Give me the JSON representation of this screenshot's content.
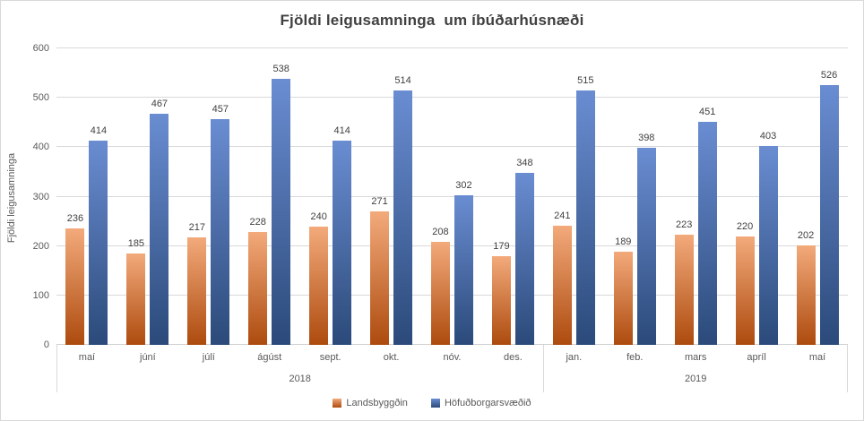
{
  "chart_data": {
    "type": "bar",
    "title": "Fjöldi leigusamninga  um íbúðarhúsnæði",
    "ylabel": "Fjöldi leigusamninga",
    "xlabel": "",
    "ylim": [
      0,
      600
    ],
    "ytick_interval": 100,
    "grid": true,
    "legend_position": "bottom",
    "background": "#ffffff",
    "gridline_color": "#d9d9d9",
    "text_color": "#595959",
    "title_color": "#404040",
    "categories": [
      "maí",
      "júní",
      "júlí",
      "ágúst",
      "sept.",
      "okt.",
      "nóv.",
      "des.",
      "jan.",
      "feb.",
      "mars",
      "apríl",
      "maí"
    ],
    "year_groups": [
      {
        "label": "2018",
        "span": 8
      },
      {
        "label": "2019",
        "span": 5
      }
    ],
    "series": [
      {
        "name": "Landsbyggðin",
        "color_top": "#f3aa7b",
        "color_bottom": "#ad4b0e",
        "values": [
          236,
          185,
          217,
          228,
          240,
          271,
          208,
          179,
          241,
          189,
          223,
          220,
          202
        ]
      },
      {
        "name": "Höfuðborgarsvæðið",
        "color_top": "#6a8dd2",
        "color_bottom": "#2b4a7a",
        "values": [
          414,
          467,
          457,
          538,
          414,
          514,
          302,
          348,
          515,
          398,
          451,
          403,
          526
        ]
      }
    ]
  }
}
